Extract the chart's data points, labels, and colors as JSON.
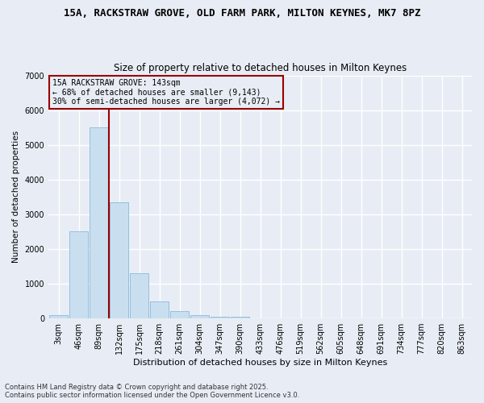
{
  "title_line1": "15A, RACKSTRAW GROVE, OLD FARM PARK, MILTON KEYNES, MK7 8PZ",
  "title_line2": "Size of property relative to detached houses in Milton Keynes",
  "xlabel": "Distribution of detached houses by size in Milton Keynes",
  "ylabel": "Number of detached properties",
  "bar_color": "#c9dff0",
  "bar_edgecolor": "#7aafd4",
  "bg_color": "#e8edf5",
  "grid_color": "#ffffff",
  "annotation_text": "15A RACKSTRAW GROVE: 143sqm\n← 68% of detached houses are smaller (9,143)\n30% of semi-detached houses are larger (4,072) →",
  "vline_color": "#990000",
  "categories": [
    "3sqm",
    "46sqm",
    "89sqm",
    "132sqm",
    "175sqm",
    "218sqm",
    "261sqm",
    "304sqm",
    "347sqm",
    "390sqm",
    "433sqm",
    "476sqm",
    "519sqm",
    "562sqm",
    "605sqm",
    "648sqm",
    "691sqm",
    "734sqm",
    "777sqm",
    "820sqm",
    "863sqm"
  ],
  "values": [
    100,
    2500,
    5500,
    3350,
    1300,
    490,
    220,
    100,
    50,
    40,
    0,
    0,
    0,
    0,
    0,
    0,
    0,
    0,
    0,
    0,
    0
  ],
  "vline_index": 2.5,
  "ylim": [
    0,
    7000
  ],
  "yticks": [
    0,
    1000,
    2000,
    3000,
    4000,
    5000,
    6000,
    7000
  ],
  "footer_line1": "Contains HM Land Registry data © Crown copyright and database right 2025.",
  "footer_line2": "Contains public sector information licensed under the Open Government Licence v3.0."
}
